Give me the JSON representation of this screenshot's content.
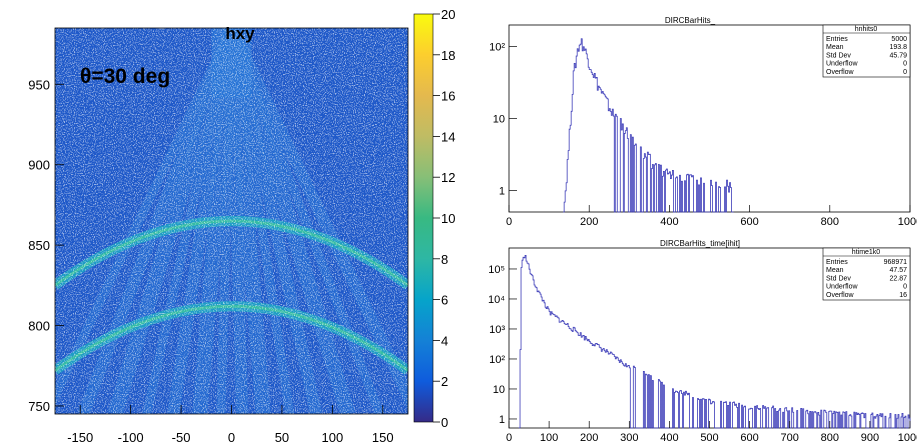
{
  "chart_data": [
    {
      "type": "heatmap",
      "title": "hxy",
      "annotation": "θ=30 deg",
      "xlim": [
        -175,
        175
      ],
      "ylim": [
        745,
        985
      ],
      "x_ticks": [
        -150,
        -100,
        -50,
        0,
        50,
        100,
        150
      ],
      "y_ticks": [
        750,
        800,
        850,
        900,
        950
      ],
      "zlim": [
        0,
        20
      ],
      "z_ticks": [
        0,
        2,
        4,
        6,
        8,
        10,
        12,
        14,
        16,
        18,
        20
      ],
      "colormap": "kBird",
      "features": [
        {
          "kind": "arc",
          "peak_y": 865,
          "edge_y": 825,
          "x_range": [
            -175,
            175
          ]
        },
        {
          "kind": "arc",
          "peak_y": 812,
          "edge_y": 772,
          "x_range": [
            -175,
            175
          ]
        },
        {
          "kind": "fan",
          "apex_x": 0,
          "apex_y": 985,
          "base_y": 745
        }
      ]
    },
    {
      "type": "bar",
      "title": "DIRCBarHits_",
      "xlim": [
        0,
        1000
      ],
      "ylog": true,
      "ylim": [
        0.5,
        200
      ],
      "x_ticks": [
        0,
        200,
        400,
        600,
        800,
        1000
      ],
      "y_ticks": [
        {
          "value": 1,
          "label": "1"
        },
        {
          "value": 10,
          "label": "10"
        },
        {
          "value": 100,
          "label": "10²"
        }
      ],
      "series": [
        {
          "profile": [
            [
              135,
              0.5
            ],
            [
              140,
              1
            ],
            [
              150,
              6
            ],
            [
              160,
              40
            ],
            [
              170,
              90
            ],
            [
              178,
              120
            ],
            [
              185,
              100
            ],
            [
              195,
              70
            ],
            [
              205,
              50
            ],
            [
              220,
              30
            ],
            [
              240,
              18
            ],
            [
              260,
              11
            ],
            [
              280,
              6
            ],
            [
              300,
              4
            ],
            [
              320,
              3
            ],
            [
              350,
              2
            ],
            [
              380,
              1.5
            ],
            [
              420,
              1.2
            ],
            [
              460,
              1
            ],
            [
              520,
              1
            ],
            [
              560,
              0.8
            ]
          ]
        }
      ],
      "stats": {
        "name": "hnhits0",
        "rows": [
          [
            "Entries",
            "5000"
          ],
          [
            "Mean",
            "193.8"
          ],
          [
            "Std Dev",
            "45.79"
          ],
          [
            "Underflow",
            "0"
          ],
          [
            "Overflow",
            "0"
          ]
        ]
      }
    },
    {
      "type": "bar",
      "title": "DIRCBarHits_time[ihit]",
      "xlim": [
        0,
        1000
      ],
      "ylog": true,
      "ylim": [
        0.5,
        500000
      ],
      "x_ticks": [
        0,
        100,
        200,
        300,
        400,
        500,
        600,
        700,
        800,
        900,
        1000
      ],
      "y_ticks": [
        {
          "value": 1,
          "label": "1"
        },
        {
          "value": 10,
          "label": "10"
        },
        {
          "value": 100,
          "label": "10²"
        },
        {
          "value": 1000,
          "label": "10³"
        },
        {
          "value": 10000,
          "label": "10⁴"
        },
        {
          "value": 100000,
          "label": "10⁵"
        }
      ],
      "series": [
        {
          "profile": [
            [
              25,
              0.5
            ],
            [
              30,
              100000
            ],
            [
              35,
              300000
            ],
            [
              40,
              250000
            ],
            [
              50,
              100000
            ],
            [
              60,
              40000
            ],
            [
              75,
              15000
            ],
            [
              100,
              3500
            ],
            [
              150,
              1200
            ],
            [
              200,
              400
            ],
            [
              250,
              150
            ],
            [
              300,
              50
            ],
            [
              350,
              20
            ],
            [
              400,
              8
            ],
            [
              450,
              5
            ],
            [
              500,
              3
            ],
            [
              600,
              2
            ],
            [
              700,
              1.5
            ],
            [
              800,
              1.2
            ],
            [
              900,
              1
            ],
            [
              1000,
              1
            ]
          ]
        }
      ],
      "stats": {
        "name": "htime1k0",
        "rows": [
          [
            "Entries",
            "968971"
          ],
          [
            "Mean",
            "47.57"
          ],
          [
            "Std Dev",
            "22.87"
          ],
          [
            "Underflow",
            "0"
          ],
          [
            "Overflow",
            "16"
          ]
        ]
      }
    }
  ]
}
